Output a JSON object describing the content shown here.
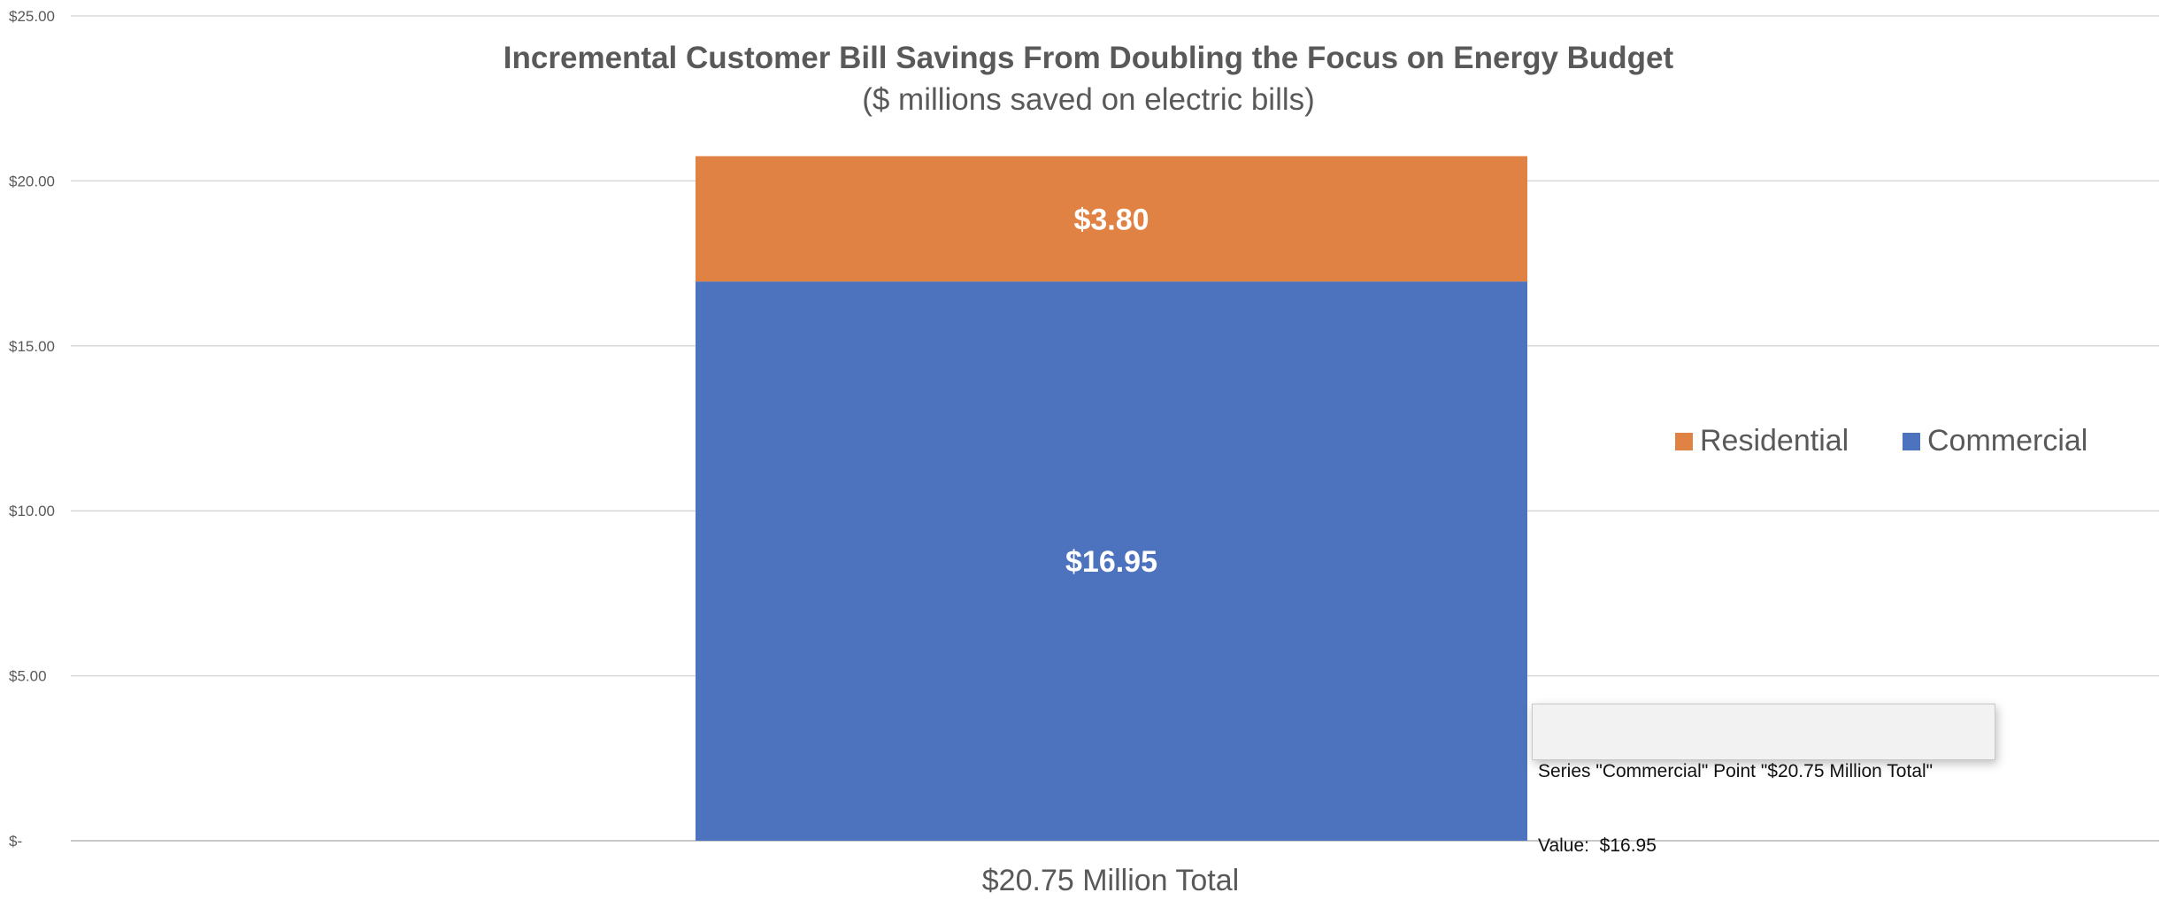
{
  "chart_data": {
    "type": "bar",
    "stacked": true,
    "title": "Incremental Customer Bill Savings From Doubling the Focus on Energy Budget",
    "subtitle": "($ millions saved on electric bills)",
    "categories": [
      "$20.75 Million Total"
    ],
    "series": [
      {
        "name": "Commercial",
        "values": [
          16.95
        ],
        "data_labels": [
          "$16.95"
        ],
        "color": "#4e73be"
      },
      {
        "name": "Residential",
        "values": [
          3.8
        ],
        "data_labels": [
          "$3.80"
        ],
        "color": "#e08243"
      }
    ],
    "ylim": [
      0,
      25
    ],
    "yticks": [
      0,
      5,
      10,
      15,
      20,
      25
    ],
    "ytick_labels": [
      "$-",
      "$5.00",
      "$10.00",
      "$15.00",
      "$20.00",
      "$25.00"
    ],
    "grid": true,
    "legend": {
      "position": "right",
      "entries": [
        "Residential",
        "Commercial"
      ]
    }
  },
  "tooltip": {
    "line1": "Series \"Commercial\" Point \"$20.75 Million Total\"",
    "line2": "Value:  $16.95"
  }
}
